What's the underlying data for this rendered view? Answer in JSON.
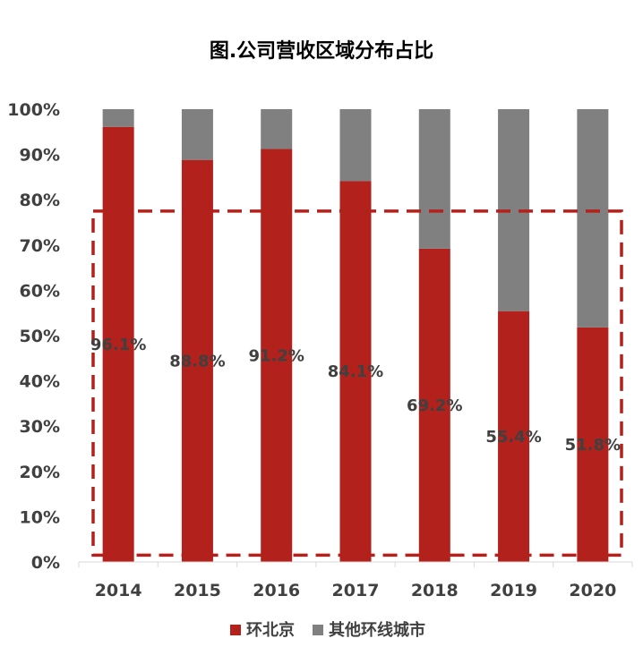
{
  "chart_data": {
    "type": "bar",
    "stacked": true,
    "title": "图.公司营收区域分布占比",
    "categories": [
      "2014",
      "2015",
      "2016",
      "2017",
      "2018",
      "2019",
      "2020"
    ],
    "series": [
      {
        "name": "环北京",
        "color": "#b2211b",
        "values": [
          96.1,
          88.8,
          91.2,
          84.1,
          69.2,
          55.4,
          51.8
        ],
        "labels": [
          "96.1%",
          "88.8%",
          "91.2%",
          "84.1%",
          "69.2%",
          "55.4%",
          "51.8%"
        ]
      },
      {
        "name": "其他环线城市",
        "color": "#808080",
        "values": [
          3.9,
          11.2,
          8.8,
          15.9,
          30.8,
          44.6,
          48.2
        ]
      }
    ],
    "ylim": [
      0,
      100
    ],
    "yticks": [
      "0%",
      "10%",
      "20%",
      "30%",
      "40%",
      "50%",
      "60%",
      "70%",
      "80%",
      "90%",
      "100%"
    ],
    "xlabel": "",
    "ylabel": "",
    "grid": false,
    "legend": "bottom",
    "annotation": {
      "type": "dashed-rectangle",
      "color": "#b2211b",
      "y_range": [
        1.5,
        77.5
      ]
    }
  }
}
